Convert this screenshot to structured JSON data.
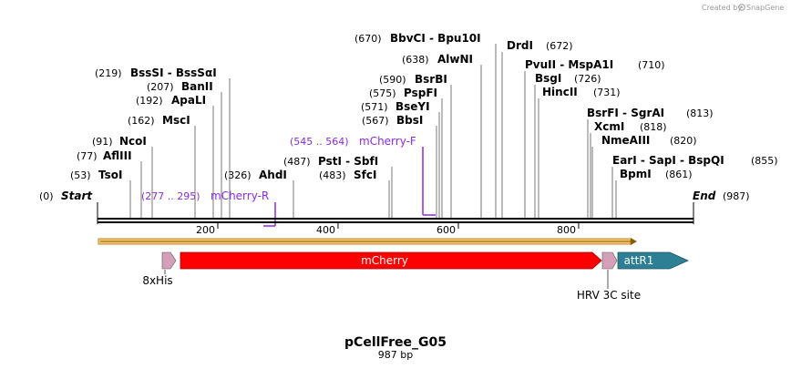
{
  "credit": {
    "text": "Created by",
    "brand": "SnapGene"
  },
  "plasmid": {
    "name": "pCellFree_G05",
    "length": "987 bp",
    "total_bp": 987
  },
  "ends": {
    "start_label": "Start",
    "start_pos": "(0)",
    "end_label": "End",
    "end_pos": "(987)"
  },
  "ruler": {
    "ticks": [
      200,
      400,
      600,
      800
    ]
  },
  "sites": [
    {
      "pos": "(53)",
      "name": "TsoI",
      "bp": 53
    },
    {
      "pos": "(77)",
      "name": "AflIII",
      "bp": 77
    },
    {
      "pos": "(91)",
      "name": "NcoI",
      "bp": 91
    },
    {
      "pos": "(162)",
      "name": "MscI",
      "bp": 162
    },
    {
      "pos": "(192)",
      "name": "ApaLI",
      "bp": 192
    },
    {
      "pos": "(207)",
      "name": "BanII",
      "bp": 207
    },
    {
      "pos": "(219)",
      "name": "BssSI - BssSαI",
      "bp": 219
    },
    {
      "pos": "(326)",
      "name": "AhdI",
      "bp": 326
    },
    {
      "pos": "(483)",
      "name": "SfcI",
      "bp": 483
    },
    {
      "pos": "(487)",
      "name": "PstI - SbfI",
      "bp": 487
    },
    {
      "pos": "(567)",
      "name": "BbsI",
      "bp": 567
    },
    {
      "pos": "(571)",
      "name": "BseYI",
      "bp": 571
    },
    {
      "pos": "(575)",
      "name": "PspFI",
      "bp": 575
    },
    {
      "pos": "(590)",
      "name": "BsrBI",
      "bp": 590
    },
    {
      "pos": "(638)",
      "name": "AlwNI",
      "bp": 638
    },
    {
      "pos": "(670)",
      "name": "BbvCI - Bpu10I",
      "bp": 670
    },
    {
      "pos": "(672)",
      "name": "DrdI",
      "bp": 672
    },
    {
      "pos": "(710)",
      "name": "PvuII - MspA1I",
      "bp": 710
    },
    {
      "pos": "(726)",
      "name": "BsgI",
      "bp": 726
    },
    {
      "pos": "(731)",
      "name": "HincII",
      "bp": 731
    },
    {
      "pos": "(813)",
      "name": "BsrFI - SgrAI",
      "bp": 813
    },
    {
      "pos": "(818)",
      "name": "XcmI",
      "bp": 818
    },
    {
      "pos": "(820)",
      "name": "NmeAIII",
      "bp": 820
    },
    {
      "pos": "(855)",
      "name": "EarI - SapI - BspQI",
      "bp": 855
    },
    {
      "pos": "(861)",
      "name": "BpmI",
      "bp": 861
    }
  ],
  "primers": [
    {
      "range": "(277 .. 295)",
      "name": "mCherry-R",
      "direction": "reverse"
    },
    {
      "range": "(545 .. 564)",
      "name": "mCherry-F",
      "direction": "forward"
    }
  ],
  "features": [
    {
      "name": "8xHis",
      "color": "#d4a0b8"
    },
    {
      "name": "mCherry",
      "color": "#ff0000"
    },
    {
      "name": "HRV 3C site",
      "color": "#d4a0b8"
    },
    {
      "name": "attR1",
      "color": "#2d7f94"
    }
  ],
  "orf_bar_color": "#f5c87a"
}
